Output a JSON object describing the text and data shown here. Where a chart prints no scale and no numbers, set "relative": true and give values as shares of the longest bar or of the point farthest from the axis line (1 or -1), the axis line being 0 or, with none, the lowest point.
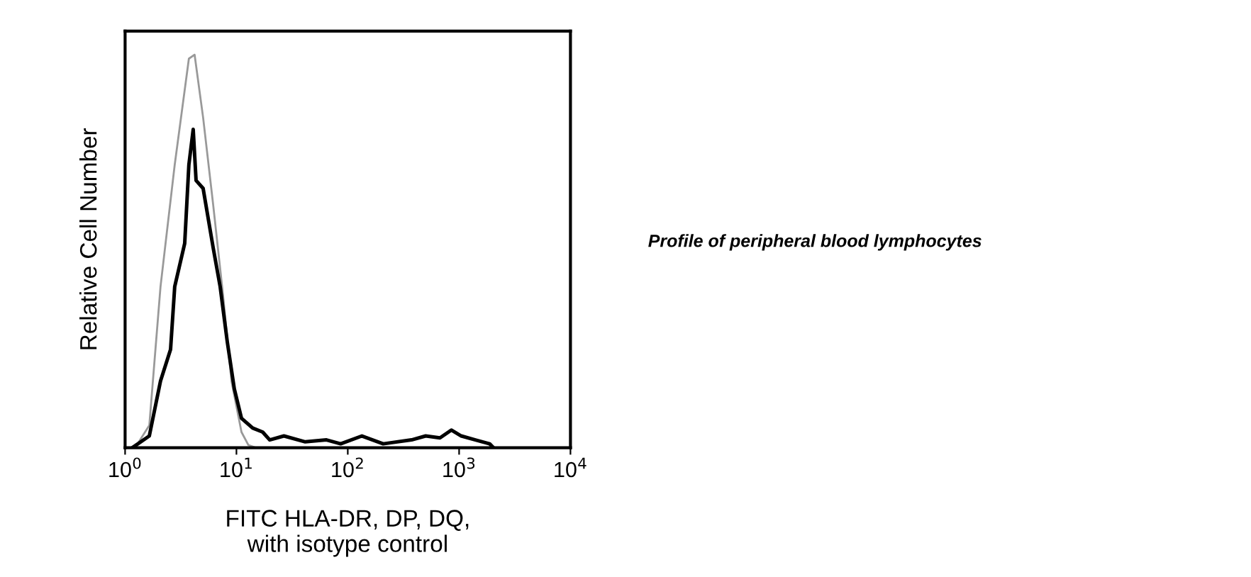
{
  "chart_data": {
    "type": "line",
    "relative": true,
    "xlabel": "FITC HLA-DR, DP, DQ,\nwith isotype control",
    "ylabel": "Relative Cell Number",
    "log": "x",
    "xlim": [
      1,
      10000
    ],
    "xticks": [
      {
        "value": 1,
        "label": "10$^{0}$"
      },
      {
        "value": 10,
        "label": "10$^{1}$"
      },
      {
        "value": 100,
        "label": "10$^{2}$"
      },
      {
        "value": 1000,
        "label": "10$^{3}$"
      },
      {
        "value": 10000,
        "label": "10$^{4}$"
      }
    ],
    "grid": false,
    "legend": false,
    "marker": "none",
    "line_style": "solid",
    "annotations": [
      "Profile of peripheral blood lymphocytes"
    ],
    "series": [
      {
        "color": "#999999",
        "x": [
          1.23,
          1.65,
          2.08,
          2.79,
          3.74,
          4.21,
          5.02,
          6.17,
          7.57,
          9.02,
          11.1,
          12.8,
          14.9
        ],
        "values": [
          0,
          0.057,
          0.41,
          0.72,
          0.99,
          1.0,
          0.84,
          0.62,
          0.39,
          0.17,
          0.04,
          0.007,
          0
        ]
      },
      {
        "color": "#000000",
        "x": [
          1.16,
          1.65,
          2.08,
          2.56,
          2.79,
          3.43,
          3.74,
          4.09,
          4.34,
          5.02,
          6.17,
          7.14,
          8.27,
          9.57,
          11.1,
          14.0,
          17.2,
          19.9,
          26.7,
          41.5,
          64.4,
          86.3,
          134,
          208,
          374,
          501,
          673,
          851,
          1045,
          1400,
          1880,
          2040
        ],
        "values": [
          0,
          0.03,
          0.17,
          0.25,
          0.41,
          0.52,
          0.72,
          0.81,
          0.68,
          0.66,
          0.51,
          0.41,
          0.27,
          0.15,
          0.075,
          0.05,
          0.04,
          0.02,
          0.03,
          0.015,
          0.02,
          0.01,
          0.03,
          0.01,
          0.02,
          0.03,
          0.025,
          0.045,
          0.03,
          0.02,
          0.01,
          0
        ]
      }
    ]
  }
}
